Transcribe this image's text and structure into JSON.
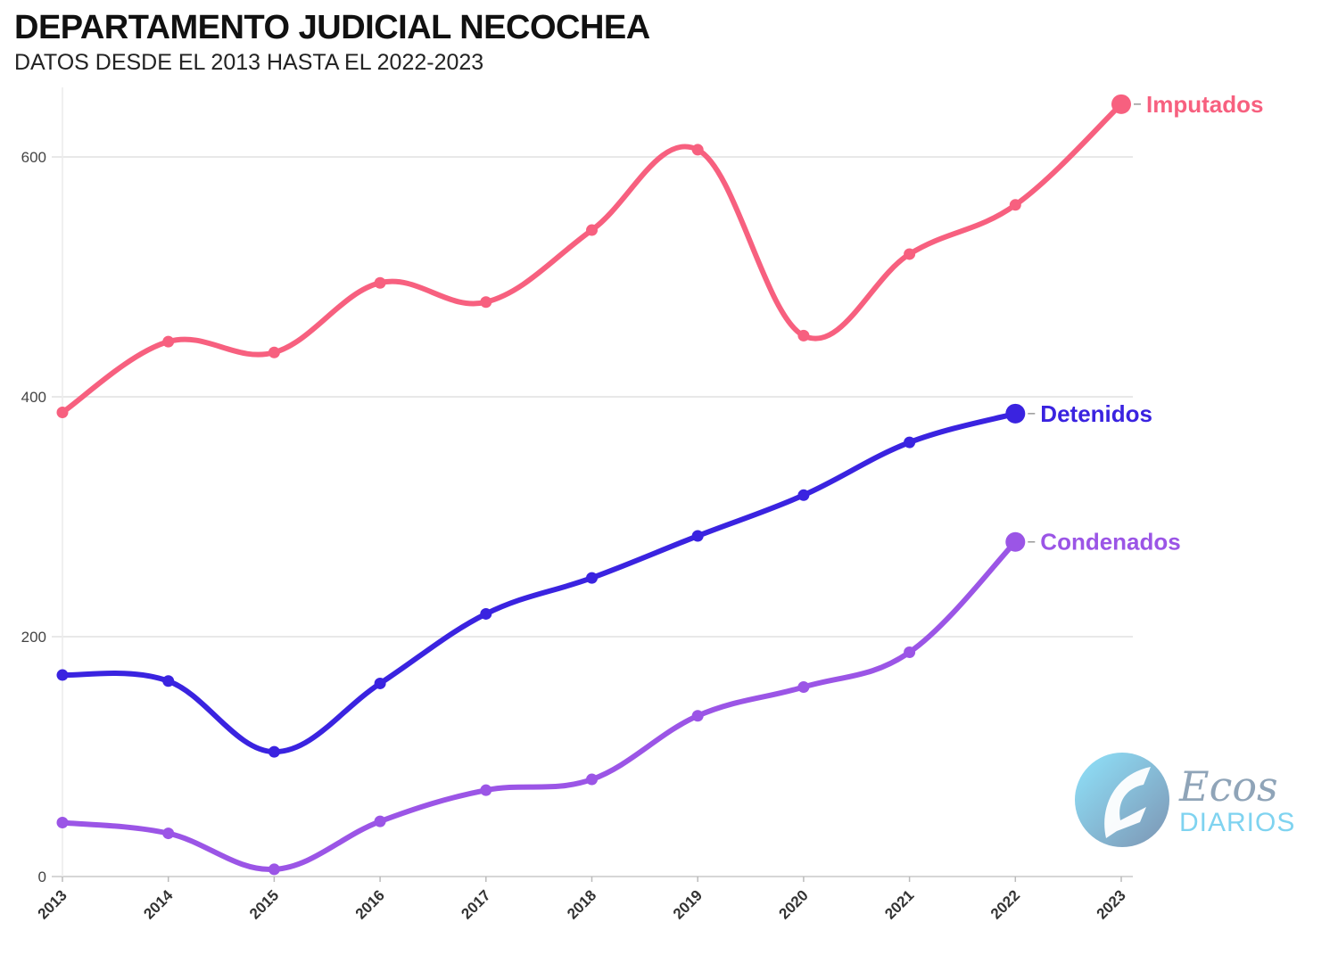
{
  "chart_data": {
    "type": "line",
    "title": "DEPARTAMENTO JUDICIAL NECOCHEA",
    "subtitle": "DATOS DESDE EL 2013 HASTA EL 2022-2023",
    "x": [
      "2013",
      "2014",
      "2015",
      "2016",
      "2017",
      "2018",
      "2019",
      "2020",
      "2021",
      "2022",
      "2023"
    ],
    "yticks": [
      "0",
      "200",
      "400",
      "600"
    ],
    "ylim": [
      0,
      660
    ],
    "grid": true,
    "legend": "direct labels at line ends",
    "series": [
      {
        "name": "Imputados",
        "color": "#f7607f",
        "values": [
          387,
          446,
          437,
          495,
          479,
          539,
          606,
          451,
          519,
          560,
          644
        ]
      },
      {
        "name": "Detenidos",
        "color": "#3a23e0",
        "values": [
          168,
          163,
          104,
          161,
          219,
          249,
          284,
          318,
          362,
          386,
          null
        ]
      },
      {
        "name": "Condenados",
        "color": "#9b55e6",
        "values": [
          45,
          36,
          6,
          46,
          72,
          81,
          134,
          158,
          187,
          279,
          null
        ]
      }
    ]
  },
  "logo": {
    "name": "ecos-diarios-logo",
    "line1": "Ecos",
    "line2": "DIARIOS"
  }
}
